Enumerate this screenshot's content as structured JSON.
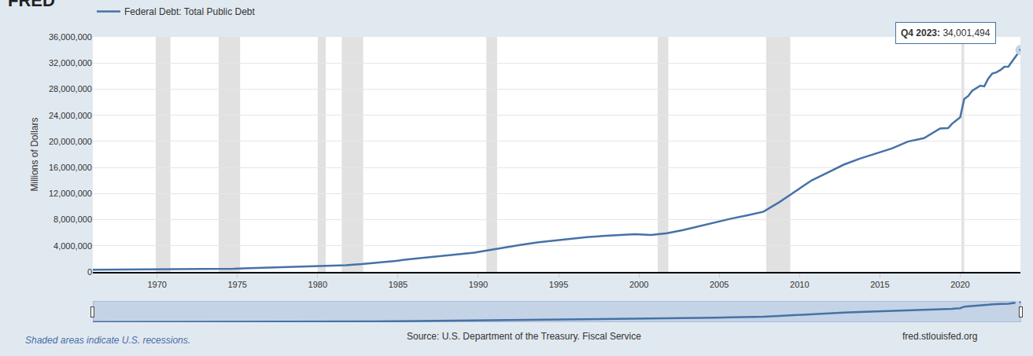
{
  "chart_data": {
    "type": "line",
    "ylabel": "Millions of Dollars",
    "x": [
      1966.0,
      1966.75,
      1967.75,
      1968.75,
      1969.75,
      1970.75,
      1971.75,
      1972.75,
      1973.75,
      1974.75,
      1975.75,
      1976.75,
      1977.75,
      1978.75,
      1979.75,
      1980.75,
      1981.75,
      1982.75,
      1983.75,
      1984.75,
      1985.75,
      1986.75,
      1987.75,
      1988.75,
      1989.75,
      1990.75,
      1991.75,
      1992.75,
      1993.75,
      1994.75,
      1995.75,
      1996.75,
      1997.75,
      1998.75,
      1999.75,
      2000.75,
      2001.75,
      2002.75,
      2003.75,
      2004.75,
      2005.75,
      2006.75,
      2007.75,
      2008.75,
      2009.75,
      2010.75,
      2011.75,
      2012.75,
      2013.75,
      2014.75,
      2015.75,
      2016.75,
      2017.75,
      2018.75,
      2019.0,
      2019.25,
      2019.5,
      2019.75,
      2020.0,
      2020.25,
      2020.5,
      2020.75,
      2021.0,
      2021.25,
      2021.5,
      2021.75,
      2022.0,
      2022.25,
      2022.5,
      2022.75,
      2023.0,
      2023.25,
      2023.5,
      2023.75
    ],
    "series": [
      {
        "name": "Federal Debt: Total Public Debt",
        "color": "#4572a7",
        "values": [
          320000,
          329000,
          345000,
          358000,
          368000,
          389000,
          424000,
          450000,
          469000,
          492000,
          577000,
          654000,
          719000,
          789000,
          845000,
          930000,
          1028000,
          1197000,
          1410000,
          1663000,
          1945000,
          2215000,
          2431000,
          2684000,
          2953000,
          3364000,
          3802000,
          4177000,
          4536000,
          4800000,
          4989000,
          5323000,
          5503000,
          5614000,
          5776000,
          5662000,
          5943000,
          6405000,
          6998000,
          7596000,
          8170000,
          8680000,
          9229000,
          10700000,
          12311000,
          14025000,
          15223000,
          16433000,
          17352000,
          18141000,
          18922000,
          19977000,
          20493000,
          21974000,
          22028000,
          22023000,
          22719000,
          23201000,
          23686000,
          26477000,
          26945000,
          27748000,
          28133000,
          28529000,
          28428000,
          29617000,
          30401000,
          30568000,
          30929000,
          31420000,
          31458000,
          32332000,
          33167000,
          34001494
        ]
      }
    ],
    "xlim": [
      1966.0,
      2023.75
    ],
    "xticks": [
      1970,
      1975,
      1980,
      1985,
      1990,
      1995,
      2000,
      2005,
      2010,
      2015,
      2020
    ],
    "ylim": [
      0,
      36000000
    ],
    "yticks": [
      0,
      {
        "value": 4000000,
        "label": "4,000,000"
      },
      {
        "value": 8000000,
        "label": "8,000,000"
      },
      {
        "value": 12000000,
        "label": "12,000,000"
      },
      {
        "value": 16000000,
        "label": "16,000,000"
      },
      {
        "value": 20000000,
        "label": "20,000,000"
      },
      {
        "value": 24000000,
        "label": "24,000,000"
      },
      {
        "value": 28000000,
        "label": "28,000,000"
      },
      {
        "value": 32000000,
        "label": "32,000,000"
      },
      {
        "value": 36000000,
        "label": "36,000,000"
      }
    ],
    "grid": true,
    "legend": "top-left",
    "recessions": [
      [
        1969.92,
        1970.83
      ],
      [
        1973.83,
        1975.17
      ],
      [
        1980.0,
        1980.5
      ],
      [
        1981.5,
        1982.83
      ],
      [
        1990.5,
        1991.17
      ],
      [
        2001.17,
        2001.83
      ],
      [
        2007.92,
        2009.42
      ],
      [
        2020.08,
        2020.25
      ]
    ],
    "annotations": [
      {
        "text": "Q4 2023: 34,001,494",
        "x": 2023.75,
        "y": 34001494
      },
      {
        "text": "FRED"
      },
      {
        "text": "Shaded areas indicate U.S. recessions."
      },
      {
        "text": "Source: U.S. Department of the Treasury. Fiscal Service"
      },
      {
        "text": "fred.stlouisfed.org"
      }
    ]
  }
}
